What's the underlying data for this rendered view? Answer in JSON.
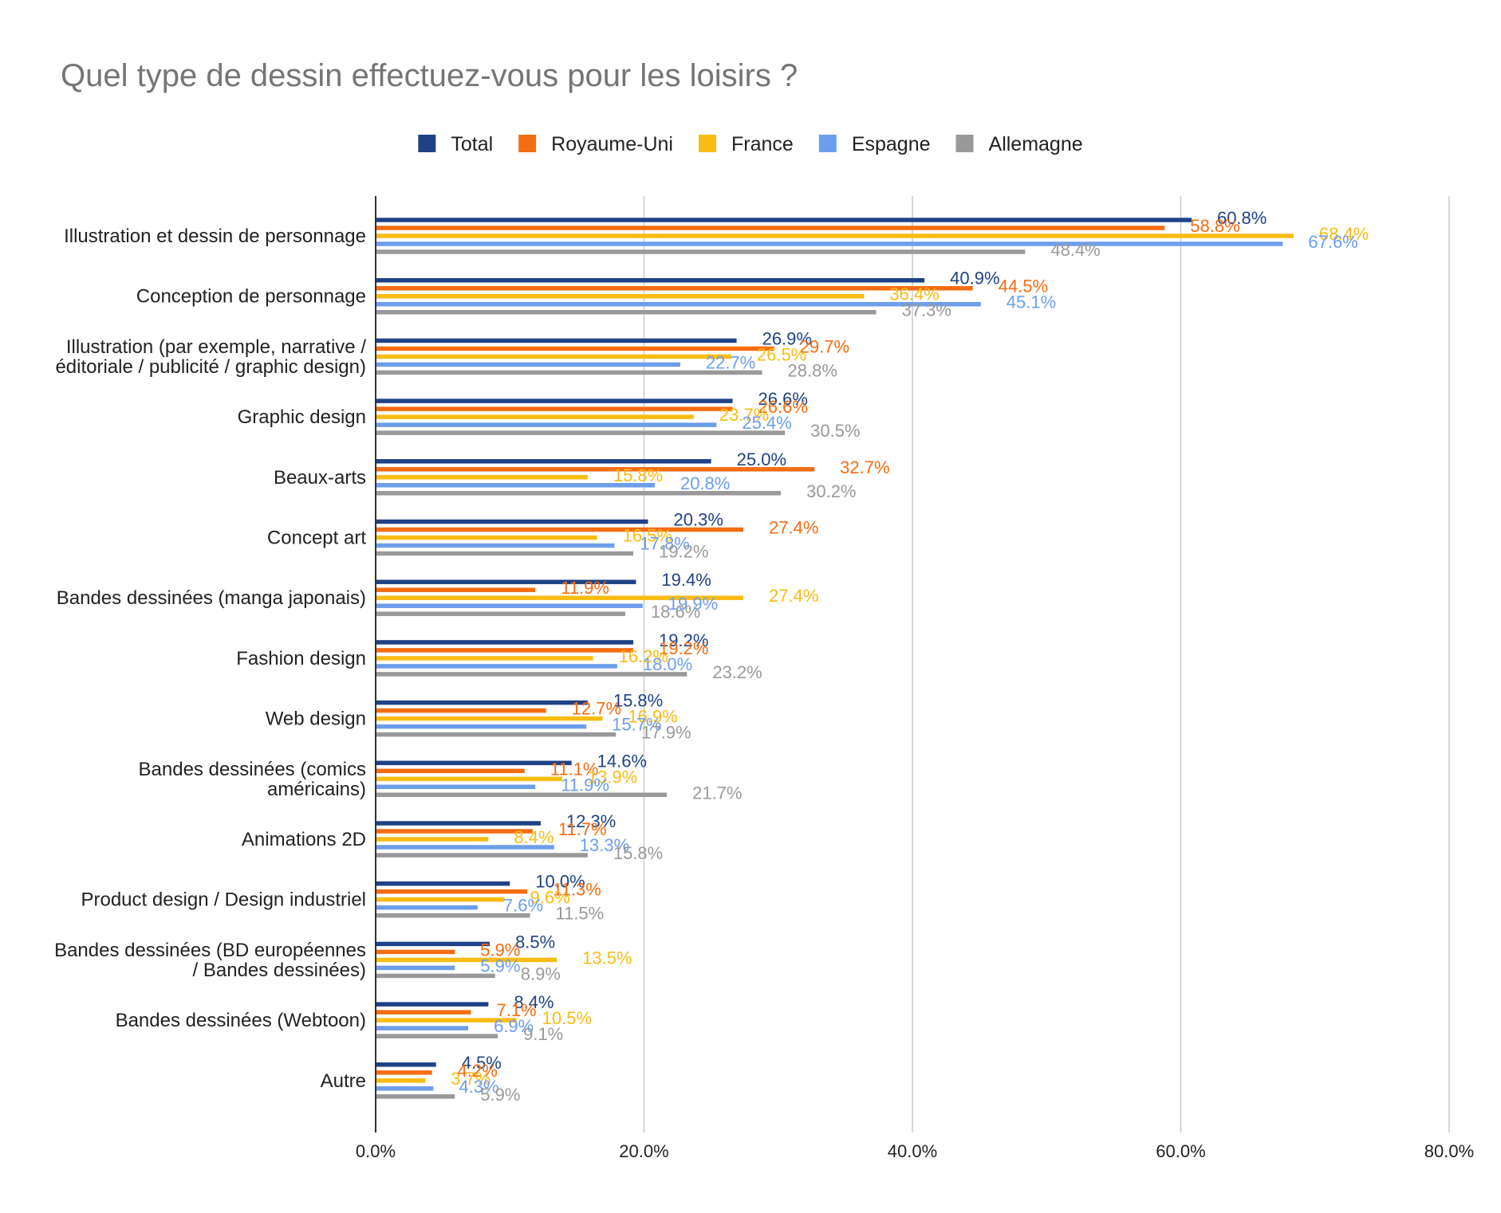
{
  "chart_data": {
    "type": "bar",
    "orientation": "horizontal",
    "title": "Quel type de dessin effectuez-vous pour les loisirs ?",
    "legend_position": "top",
    "grid": true,
    "xlim": [
      0,
      80
    ],
    "x_ticks": [
      0,
      20,
      40,
      60,
      80
    ],
    "x_tick_labels": [
      "0.0%",
      "20.0%",
      "40.0%",
      "60.0%",
      "80.0%"
    ],
    "categories": [
      [
        "Illustration et dessin de personnage"
      ],
      [
        "Conception de personnage"
      ],
      [
        "Illustration (par exemple, narrative /",
        "éditoriale / publicité / graphic design)"
      ],
      [
        "Graphic design"
      ],
      [
        "Beaux-arts"
      ],
      [
        "Concept art"
      ],
      [
        "Bandes dessinées (manga japonais)"
      ],
      [
        "Fashion design"
      ],
      [
        "Web design"
      ],
      [
        "Bandes dessinées (comics",
        "américains)"
      ],
      [
        "Animations 2D"
      ],
      [
        "Product design / Design industriel"
      ],
      [
        "Bandes dessinées (BD européennes",
        "/ Bandes dessinées)"
      ],
      [
        "Bandes dessinées (Webtoon)"
      ],
      [
        "Autre"
      ]
    ],
    "series": [
      {
        "name": "Total",
        "color": "#1f4286",
        "values": [
          60.8,
          40.9,
          26.9,
          26.6,
          25.0,
          20.3,
          19.4,
          19.2,
          15.8,
          14.6,
          12.3,
          10.0,
          8.5,
          8.4,
          4.5
        ]
      },
      {
        "name": "Royaume-Uni",
        "color": "#f46d12",
        "values": [
          58.8,
          44.5,
          29.7,
          26.6,
          32.7,
          27.4,
          11.9,
          19.2,
          12.7,
          11.1,
          11.7,
          11.3,
          5.9,
          7.1,
          4.2
        ]
      },
      {
        "name": "France",
        "color": "#f9bc13",
        "values": [
          68.4,
          36.4,
          26.5,
          23.7,
          15.8,
          16.5,
          27.4,
          16.2,
          16.9,
          13.9,
          8.4,
          9.6,
          13.5,
          10.5,
          3.7
        ]
      },
      {
        "name": "Espagne",
        "color": "#6d9eeb",
        "values": [
          67.6,
          45.1,
          22.7,
          25.4,
          20.8,
          17.8,
          19.9,
          18.0,
          15.7,
          11.9,
          13.3,
          7.6,
          5.9,
          6.9,
          4.3
        ]
      },
      {
        "name": "Allemagne",
        "color": "#999999",
        "values": [
          48.4,
          37.3,
          28.8,
          30.5,
          30.2,
          19.2,
          18.6,
          23.2,
          17.9,
          21.7,
          15.8,
          11.5,
          8.9,
          9.1,
          5.9
        ]
      }
    ],
    "data_labels": [
      [
        "60.8%",
        "40.9%",
        "26.9%",
        "26.6%",
        "25.0%",
        "20.3%",
        "19.4%",
        "19.2%",
        "15.8%",
        "14.6%",
        "12.3%",
        "10.0%",
        "8.5%",
        "8.4%",
        "4.5%"
      ],
      [
        "58.8%",
        "44.5%",
        "29.7%",
        "26.6%",
        "32.7%",
        "27.4%",
        "11.9%",
        "19.2%",
        "12.7%",
        "11.1%",
        "11.7%",
        "11.3%",
        "5.9%",
        "7.1%",
        "4.2%"
      ],
      [
        "68.4%",
        "36.4%",
        "26.5%",
        "23.7%",
        "15.8%",
        "16.5%",
        "27.4%",
        "16.2%",
        "16.9%",
        "13.9%",
        "8.4%",
        "9.6%",
        "13.5%",
        "10.5%",
        "3.7%"
      ],
      [
        "67.6%",
        "45.1%",
        "22.7%",
        "25.4%",
        "20.8%",
        "17.8%",
        "19.9%",
        "18.0%",
        "15.7%",
        "11.9%",
        "13.3%",
        "7.6%",
        "5.9%",
        "6.9%",
        "4.3%"
      ],
      [
        "48.4%",
        "37.3%",
        "28.8%",
        "30.5%",
        "30.2%",
        "19.2%",
        "18.6%",
        "23.2%",
        "17.9%",
        "21.7%",
        "15.8%",
        "11.5%",
        "8.9%",
        "9.1%",
        "5.9%"
      ]
    ]
  }
}
